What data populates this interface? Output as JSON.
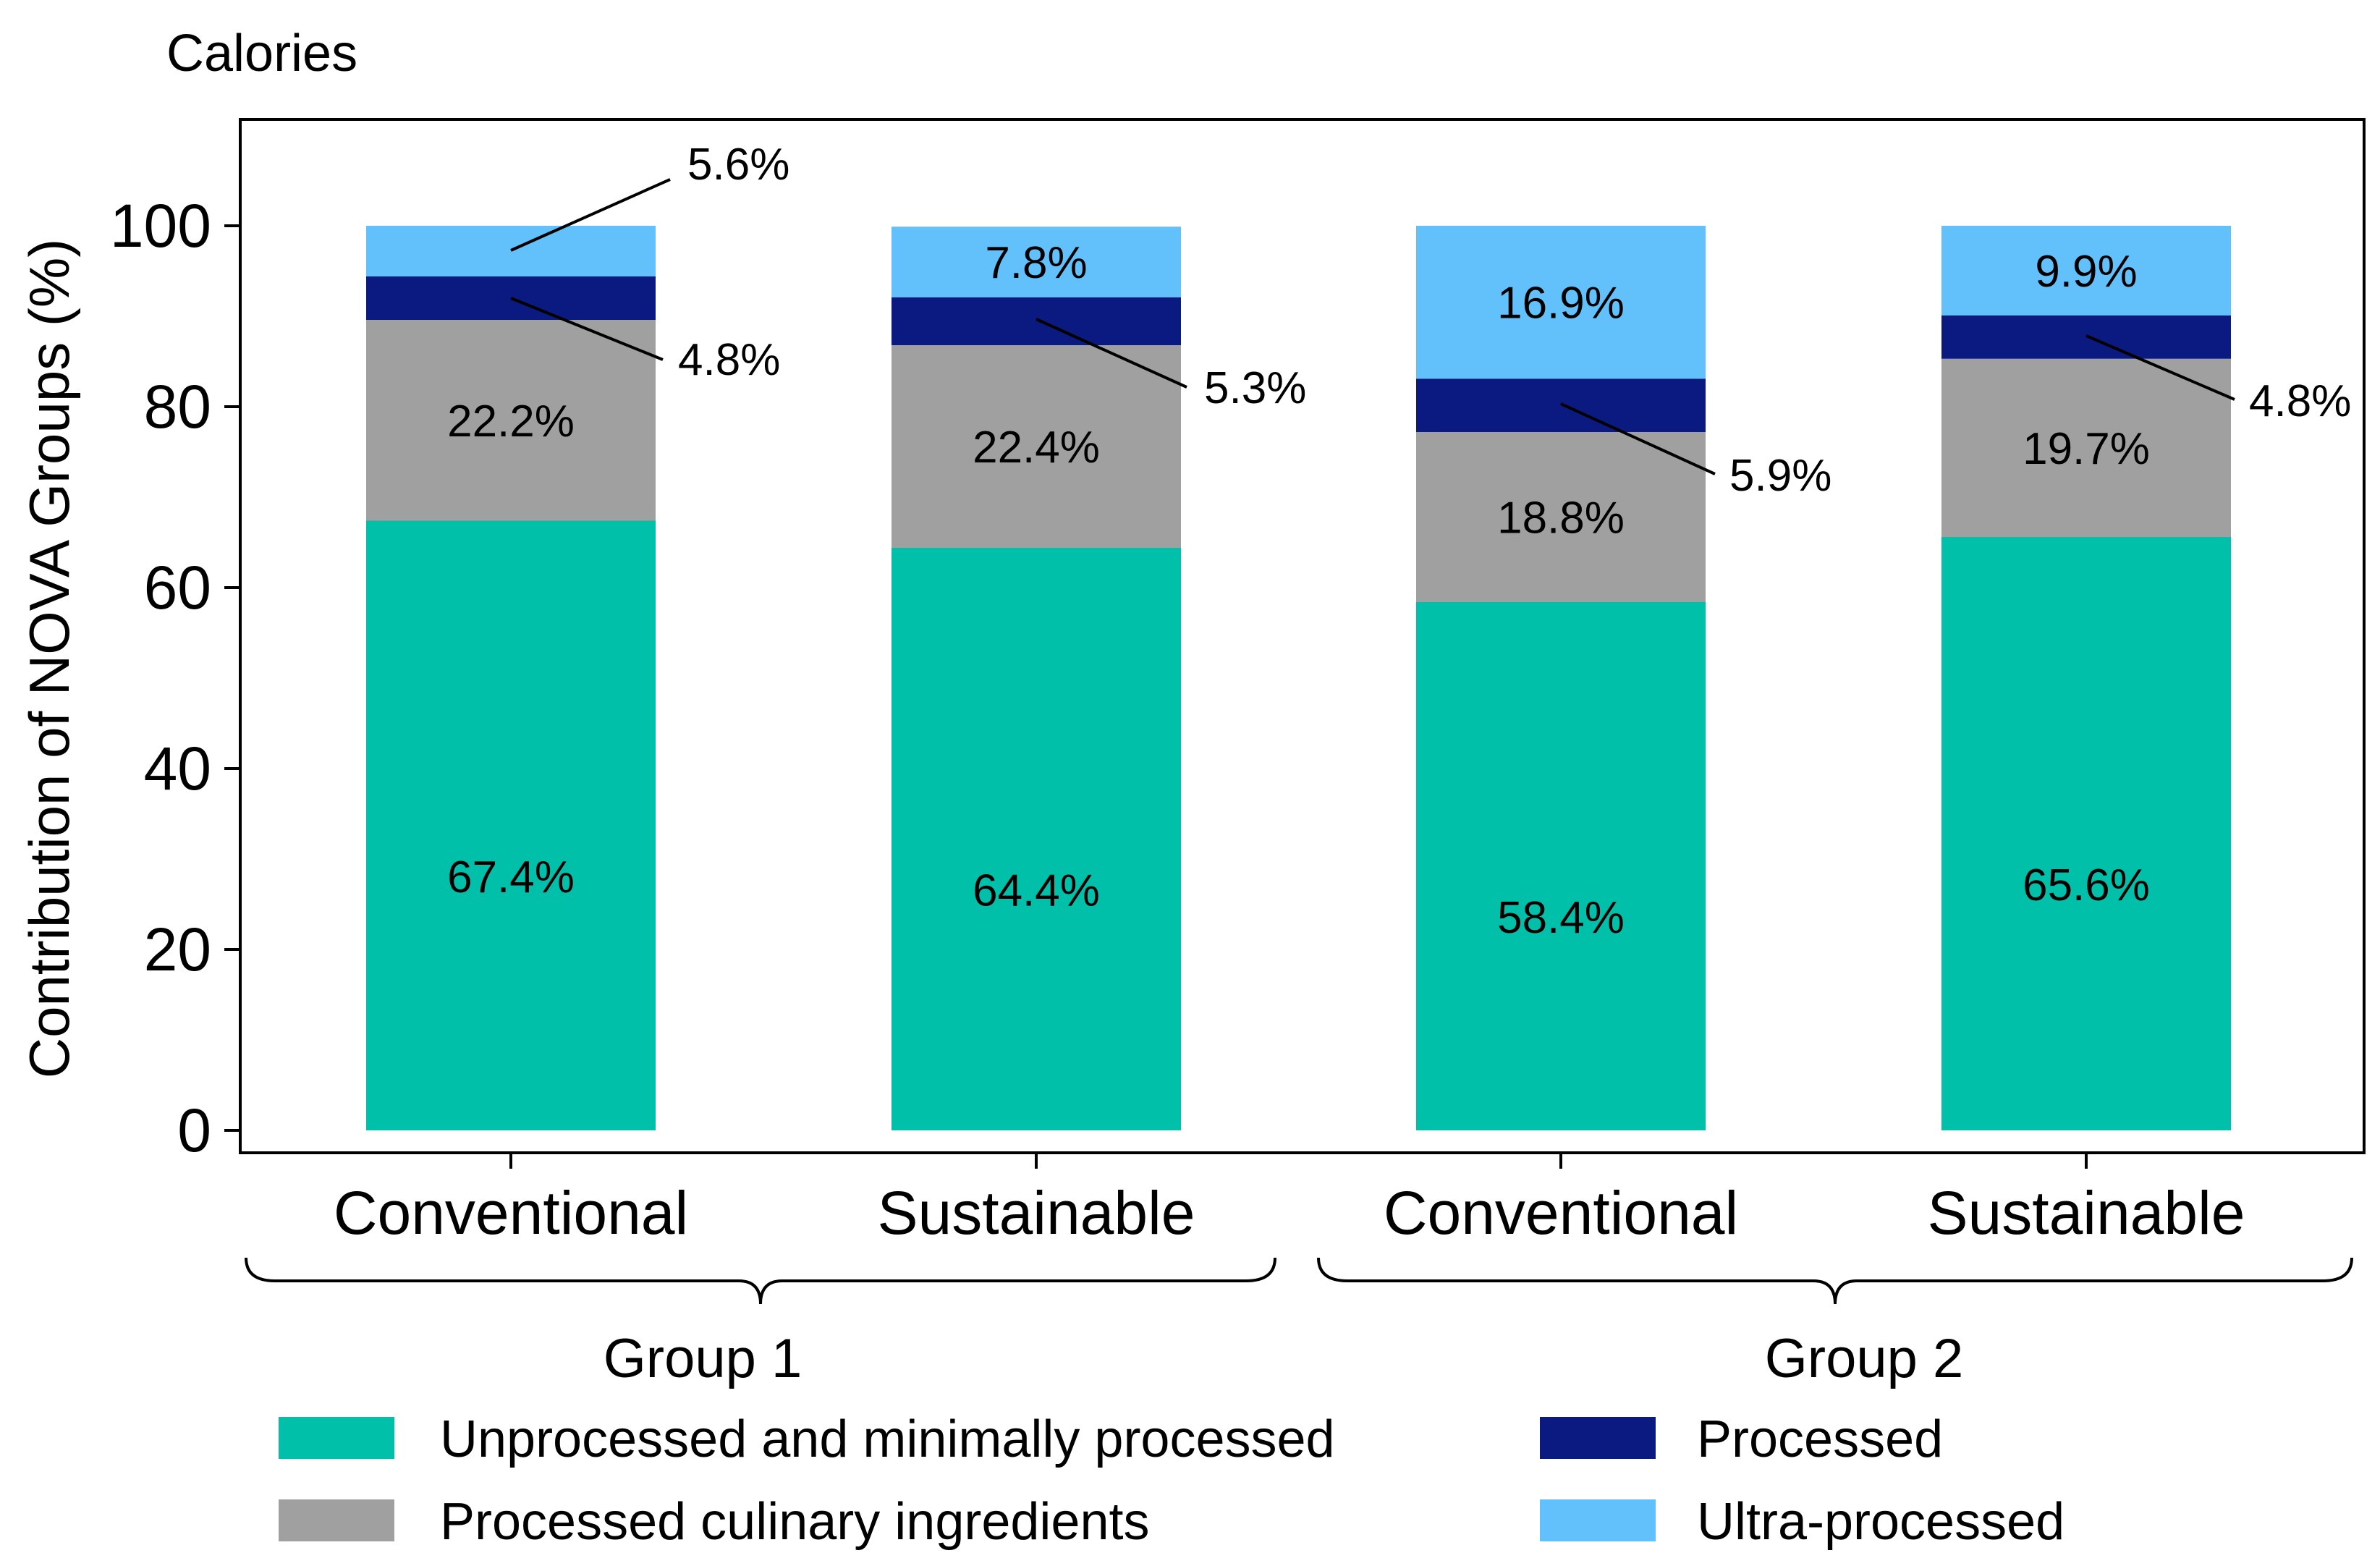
{
  "chart_data": {
    "type": "bar",
    "stacked": true,
    "title": "Calories",
    "xlabel": "",
    "ylabel": "Contribution of NOVA Groups (%)",
    "ylim": [
      0,
      112
    ],
    "yticks": [
      0,
      20,
      40,
      60,
      80,
      100
    ],
    "grid": false,
    "categories": [
      "Conventional",
      "Sustainable",
      "Conventional",
      "Sustainable"
    ],
    "groups": [
      {
        "label": "Group 1",
        "categories": [
          0,
          1
        ]
      },
      {
        "label": "Group 2",
        "categories": [
          2,
          3
        ]
      }
    ],
    "series": [
      {
        "name": "Unprocessed and minimally processed",
        "color": "#00c0aa",
        "values": [
          67.4,
          64.4,
          58.4,
          65.6
        ]
      },
      {
        "name": "Processed culinary ingredients",
        "color": "#a0a0a0",
        "values": [
          22.2,
          22.4,
          18.8,
          19.7
        ]
      },
      {
        "name": "Processed",
        "color": "#0a1a80",
        "values": [
          4.8,
          5.3,
          5.9,
          4.8
        ]
      },
      {
        "name": "Ultra-processed",
        "color": "#62c1fb",
        "values": [
          5.6,
          7.8,
          16.9,
          9.9
        ]
      }
    ],
    "data_labels": [
      [
        "67.4%",
        "64.4%",
        "58.4%",
        "65.6%"
      ],
      [
        "22.2%",
        "22.4%",
        "18.8%",
        "19.7%"
      ],
      [
        "4.8%",
        "5.3%",
        "5.9%",
        "4.8%"
      ],
      [
        "5.6%",
        "7.8%",
        "16.9%",
        "9.9%"
      ]
    ],
    "legend": {
      "placement": "bottom",
      "columns": 2,
      "order": [
        0,
        2,
        1,
        3
      ]
    }
  }
}
